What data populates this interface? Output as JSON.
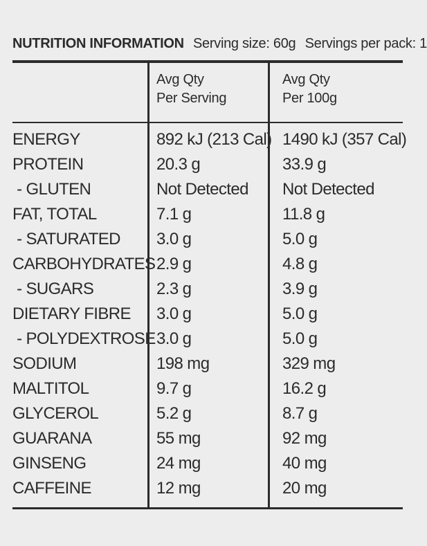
{
  "header": {
    "title": "NUTRITION INFORMATION",
    "serving_size": "Serving size: 60g",
    "servings_per_pack": "Servings per pack: 1"
  },
  "columns": {
    "serving_line1": "Avg Qty",
    "serving_line2": "Per Serving",
    "per100_line1": "Avg Qty",
    "per100_line2": "Per 100g"
  },
  "rows": [
    {
      "nutrient": "ENERGY",
      "serving": "892 kJ (213 Cal)",
      "per100": "1490 kJ (357 Cal)"
    },
    {
      "nutrient": "PROTEIN",
      "serving": "20.3 g",
      "per100": "33.9 g"
    },
    {
      "nutrient": " - GLUTEN",
      "serving": "Not Detected",
      "per100": "Not Detected"
    },
    {
      "nutrient": "FAT, TOTAL",
      "serving": "7.1 g",
      "per100": "11.8 g"
    },
    {
      "nutrient": " - SATURATED",
      "serving": "3.0 g",
      "per100": "5.0 g"
    },
    {
      "nutrient": "CARBOHYDRATES",
      "serving": "2.9 g",
      "per100": "4.8 g"
    },
    {
      "nutrient": " - SUGARS",
      "serving": "2.3 g",
      "per100": "3.9 g"
    },
    {
      "nutrient": "DIETARY FIBRE",
      "serving": "3.0 g",
      "per100": "5.0 g"
    },
    {
      "nutrient": " - POLYDEXTROSE",
      "serving": "3.0 g",
      "per100": "5.0 g"
    },
    {
      "nutrient": "SODIUM",
      "serving": "198 mg",
      "per100": "329 mg"
    },
    {
      "nutrient": "MALTITOL",
      "serving": "9.7 g",
      "per100": "16.2 g"
    },
    {
      "nutrient": "GLYCEROL",
      "serving": "5.2 g",
      "per100": "8.7 g"
    },
    {
      "nutrient": "GUARANA",
      "serving": "55 mg",
      "per100": "92 mg"
    },
    {
      "nutrient": "GINSENG",
      "serving": "24 mg",
      "per100": "40 mg"
    },
    {
      "nutrient": "CAFFEINE",
      "serving": "12 mg",
      "per100": "20 mg"
    }
  ]
}
